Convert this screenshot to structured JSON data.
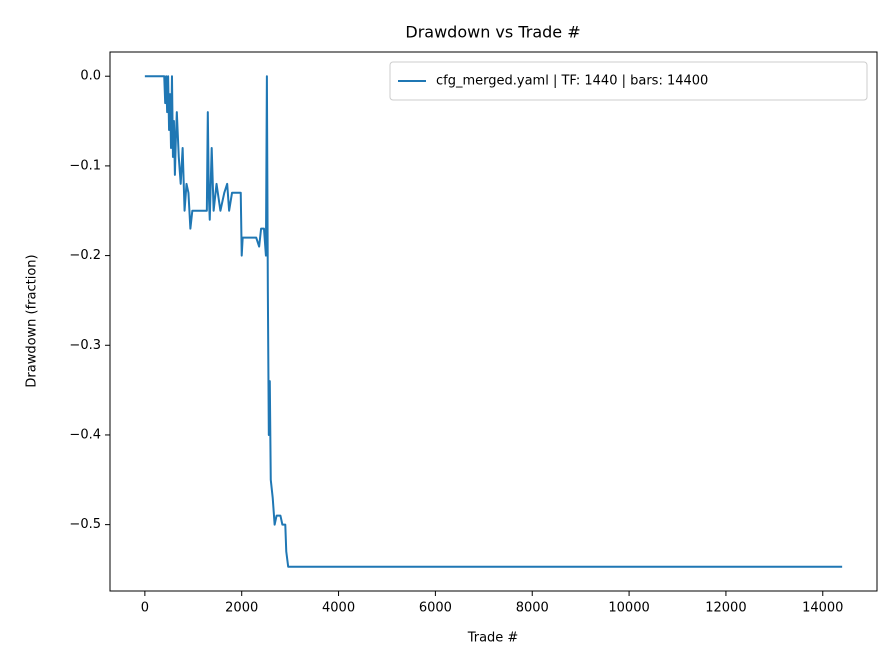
{
  "chart_data": {
    "type": "line",
    "title": "Drawdown vs Trade #",
    "x_label": "Trade #",
    "y_label": "Drawdown (fraction)",
    "x": [
      0,
      400,
      420,
      440,
      460,
      480,
      500,
      520,
      540,
      560,
      580,
      600,
      620,
      640,
      660,
      700,
      740,
      780,
      820,
      860,
      900,
      940,
      980,
      1000,
      1280,
      1300,
      1320,
      1340,
      1380,
      1420,
      1480,
      1560,
      1640,
      1700,
      1740,
      1800,
      1900,
      1980,
      2000,
      2020,
      2300,
      2360,
      2400,
      2460,
      2500,
      2520,
      2540,
      2560,
      2580,
      2600,
      2640,
      2680,
      2720,
      2800,
      2840,
      2900,
      2920,
      2960,
      14400
    ],
    "series": [
      {
        "name": "cfg_merged.yaml | TF: 1440 | bars: 14400",
        "color": "#1f77b4",
        "values": [
          0,
          0,
          -0.03,
          0,
          -0.04,
          0,
          -0.06,
          -0.02,
          -0.08,
          0,
          -0.09,
          -0.05,
          -0.11,
          -0.07,
          -0.04,
          -0.09,
          -0.12,
          -0.08,
          -0.15,
          -0.12,
          -0.13,
          -0.17,
          -0.15,
          -0.15,
          -0.15,
          -0.04,
          -0.13,
          -0.16,
          -0.08,
          -0.15,
          -0.12,
          -0.15,
          -0.13,
          -0.12,
          -0.15,
          -0.13,
          -0.13,
          -0.13,
          -0.2,
          -0.18,
          -0.18,
          -0.19,
          -0.17,
          -0.17,
          -0.2,
          0,
          -0.24,
          -0.4,
          -0.34,
          -0.45,
          -0.47,
          -0.5,
          -0.49,
          -0.49,
          -0.5,
          -0.5,
          -0.53,
          -0.547,
          -0.547
        ]
      }
    ],
    "xlim": [
      -720,
      15120
    ],
    "ylim": [
      -0.574,
      0.027
    ],
    "xticks": [
      0,
      2000,
      4000,
      6000,
      8000,
      10000,
      12000,
      14000
    ],
    "yticks": [
      {
        "value": 0,
        "label": "0.0"
      },
      {
        "value": -0.1,
        "label": "−0.1"
      },
      {
        "value": -0.2,
        "label": "−0.2"
      },
      {
        "value": -0.3,
        "label": "−0.3"
      },
      {
        "value": -0.4,
        "label": "−0.4"
      },
      {
        "value": -0.5,
        "label": "−0.5"
      }
    ],
    "legend": "upper right",
    "grid": false
  }
}
